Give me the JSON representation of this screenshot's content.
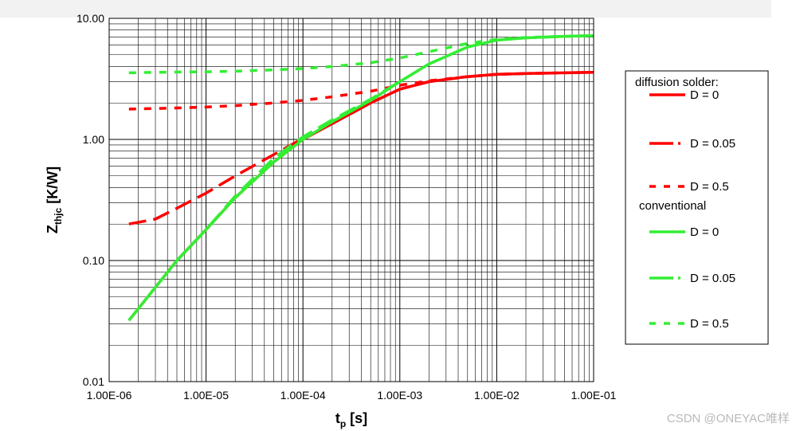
{
  "chart_data": {
    "type": "line",
    "title": "",
    "xlabel": "t",
    "xlabel_sub": "p",
    "xlabel_unit": " [s]",
    "ylabel": "Z",
    "ylabel_sub": "thjc",
    "ylabel_unit": " [K/W]",
    "xscale": "log",
    "yscale": "log",
    "xlim": [
      1e-06,
      0.1
    ],
    "ylim": [
      0.01,
      10
    ],
    "x_ticks": [
      1e-06,
      1e-05,
      0.0001,
      0.001,
      0.01,
      0.1
    ],
    "x_tick_labels": [
      "1.00E-06",
      "1.00E-05",
      "1.00E-04",
      "1.00E-03",
      "1.00E-02",
      "1.00E-01"
    ],
    "y_ticks": [
      0.01,
      0.1,
      1,
      10
    ],
    "y_tick_labels": [
      "0.01",
      "0.10",
      "1.00",
      "10.00"
    ],
    "grid": true,
    "legend_placement": "right",
    "legend_groups": [
      {
        "label": "diffusion solder:",
        "series_indices": [
          0,
          1,
          2
        ]
      },
      {
        "label": "conventional",
        "series_indices": [
          3,
          4,
          5
        ]
      }
    ],
    "series": [
      {
        "name": "D = 0",
        "color": "#ff0000",
        "style": "solid",
        "x": [
          1.6e-06,
          3e-06,
          5e-06,
          1e-05,
          2e-05,
          5e-05,
          0.0001,
          0.0002,
          0.0005,
          0.001,
          0.002,
          0.005,
          0.01,
          0.02,
          0.05,
          0.1
        ],
        "y": [
          0.032,
          0.06,
          0.1,
          0.18,
          0.33,
          0.65,
          1.0,
          1.35,
          2.0,
          2.6,
          3.0,
          3.3,
          3.45,
          3.5,
          3.55,
          3.58
        ]
      },
      {
        "name": "D = 0.05",
        "color": "#ff0000",
        "style": "dashed",
        "x": [
          1.6e-06,
          3e-06,
          5e-06,
          1e-05,
          2e-05,
          5e-05,
          0.0001,
          0.0002,
          0.0005,
          0.001,
          0.002,
          0.005,
          0.01,
          0.02,
          0.05,
          0.1
        ],
        "y": [
          0.2,
          0.22,
          0.27,
          0.36,
          0.5,
          0.75,
          1.02,
          1.35,
          2.0,
          2.6,
          3.0,
          3.3,
          3.45,
          3.5,
          3.55,
          3.58
        ]
      },
      {
        "name": "D = 0.5",
        "color": "#ff0000",
        "style": "dotted",
        "x": [
          1.6e-06,
          3e-06,
          5e-06,
          1e-05,
          2e-05,
          5e-05,
          0.0001,
          0.0002,
          0.0005,
          0.001,
          0.002,
          0.005,
          0.01,
          0.02,
          0.05,
          0.1
        ],
        "y": [
          1.78,
          1.8,
          1.82,
          1.85,
          1.9,
          2.0,
          2.1,
          2.25,
          2.5,
          2.8,
          3.05,
          3.3,
          3.45,
          3.5,
          3.55,
          3.58
        ]
      },
      {
        "name": "D = 0",
        "color": "#33ee33",
        "style": "solid",
        "x": [
          1.6e-06,
          3e-06,
          5e-06,
          1e-05,
          2e-05,
          5e-05,
          0.0001,
          0.0002,
          0.0005,
          0.001,
          0.002,
          0.005,
          0.01,
          0.02,
          0.05,
          0.1
        ],
        "y": [
          0.032,
          0.06,
          0.1,
          0.18,
          0.33,
          0.65,
          1.0,
          1.4,
          2.1,
          3.0,
          4.2,
          5.8,
          6.6,
          6.9,
          7.1,
          7.2
        ]
      },
      {
        "name": "D = 0.05",
        "color": "#33ee33",
        "style": "dashed",
        "x": [
          1.6e-06,
          3e-06,
          5e-06,
          1e-05,
          2e-05,
          5e-05,
          0.0001,
          0.0002,
          0.0005,
          0.001,
          0.002,
          0.005,
          0.01,
          0.02,
          0.05,
          0.1
        ],
        "y": [
          0.032,
          0.06,
          0.1,
          0.18,
          0.34,
          0.7,
          1.05,
          1.45,
          2.15,
          3.0,
          4.2,
          5.8,
          6.6,
          6.9,
          7.1,
          7.2
        ]
      },
      {
        "name": "D = 0.5",
        "color": "#33ee33",
        "style": "dotted",
        "x": [
          1.6e-06,
          3e-06,
          5e-06,
          1e-05,
          2e-05,
          5e-05,
          0.0001,
          0.0002,
          0.0005,
          0.001,
          0.002,
          0.005,
          0.01,
          0.02,
          0.05,
          0.1
        ],
        "y": [
          3.55,
          3.58,
          3.6,
          3.62,
          3.66,
          3.75,
          3.85,
          4.0,
          4.3,
          4.7,
          5.3,
          6.2,
          6.7,
          6.95,
          7.1,
          7.2
        ]
      }
    ]
  },
  "watermark": "CSDN @ONEYAC唯样"
}
